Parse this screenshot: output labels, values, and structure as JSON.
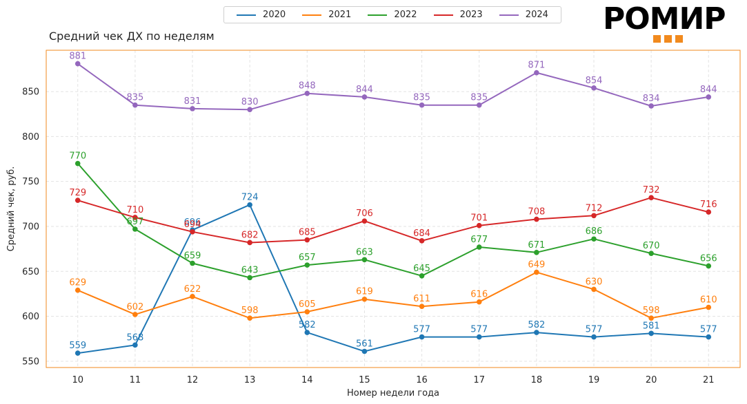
{
  "logo": {
    "text": "РОМИР"
  },
  "chart_data": {
    "type": "line",
    "title": "Средний чек ДХ по неделям",
    "xlabel": "Номер недели года",
    "ylabel": "Средний чек, руб.",
    "x": [
      10,
      11,
      12,
      13,
      14,
      15,
      16,
      17,
      18,
      19,
      20,
      21
    ],
    "x_ticks": [
      "10",
      "11",
      "12",
      "13",
      "14",
      "15",
      "16",
      "17",
      "18",
      "19",
      "20",
      "21"
    ],
    "y_ticks": [
      550,
      600,
      650,
      700,
      750,
      800,
      850
    ],
    "xlim": [
      9.45,
      21.55
    ],
    "ylim": [
      543,
      896
    ],
    "grid": true,
    "legend_position": "top-center",
    "frame_color": "#f18a1e",
    "series": [
      {
        "name": "2020",
        "color": "#1f77b4",
        "values": [
          559,
          568,
          696,
          724,
          582,
          561,
          577,
          577,
          582,
          577,
          581,
          577
        ]
      },
      {
        "name": "2021",
        "color": "#ff7f0e",
        "values": [
          629,
          602,
          622,
          598,
          605,
          619,
          611,
          616,
          649,
          630,
          598,
          610
        ]
      },
      {
        "name": "2022",
        "color": "#2ca02c",
        "values": [
          770,
          697,
          659,
          643,
          657,
          663,
          645,
          677,
          671,
          686,
          670,
          656
        ]
      },
      {
        "name": "2023",
        "color": "#d62728",
        "values": [
          729,
          710,
          694,
          682,
          685,
          706,
          684,
          701,
          708,
          712,
          732,
          716
        ]
      },
      {
        "name": "2024",
        "color": "#9467bd",
        "values": [
          881,
          835,
          831,
          830,
          848,
          844,
          835,
          835,
          871,
          854,
          834,
          844
        ]
      }
    ]
  }
}
